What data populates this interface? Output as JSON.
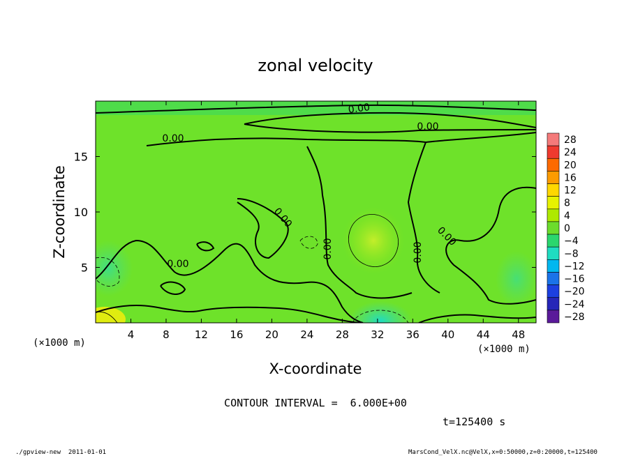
{
  "chart_data": {
    "type": "heatmap",
    "title": "zonal velocity",
    "xlabel": "X-coordinate",
    "ylabel": "Z-coordinate",
    "x_unit_left": "(×1000 m)",
    "x_unit_right": "(×1000 m)",
    "xlim": [
      0,
      50
    ],
    "ylim": [
      0,
      20
    ],
    "x_ticks": [
      4,
      8,
      12,
      16,
      20,
      24,
      28,
      32,
      36,
      40,
      44,
      48
    ],
    "y_ticks": [
      5,
      10,
      15
    ],
    "colorbar": {
      "levels": [
        28,
        24,
        20,
        16,
        12,
        8,
        4,
        0,
        -4,
        -8,
        -12,
        -16,
        -20,
        -24,
        -28
      ],
      "level_labels": [
        "28",
        "24",
        "20",
        "16",
        "12",
        "8",
        "4",
        "0",
        "−4",
        "−8",
        "−12",
        "−16",
        "−20",
        "−24",
        "−28"
      ],
      "colors": [
        "#f47a7a",
        "#ef3a2f",
        "#fd6a00",
        "#fc9b00",
        "#ffd700",
        "#e7f200",
        "#aee900",
        "#6cdc2c",
        "#2bd66e",
        "#1fdcc1",
        "#00b7ef",
        "#1a73e8",
        "#1c40e0",
        "#2626b8",
        "#5a1a9a"
      ]
    },
    "contour_labels": [
      "0.00",
      "0.00",
      "0.00",
      "0.00",
      "0.00",
      "0.00",
      "0.00",
      "0.00"
    ],
    "contour_interval_text": "CONTOUR INTERVAL =  6.000E+00",
    "time_text": "t=125400 s",
    "features": [
      {
        "kind": "positive",
        "x": 31.5,
        "z": 7.8,
        "value": 6
      },
      {
        "kind": "negative",
        "x": 32,
        "z": 1.0,
        "value": -8
      },
      {
        "kind": "positive",
        "x": 1,
        "z": 0.6,
        "value": 10
      },
      {
        "kind": "negative",
        "x": 2,
        "z": 4.5,
        "value": -4
      }
    ]
  },
  "footer": {
    "left": "./gpview-new  2011-01-01",
    "right": "MarsCond_VelX.nc@VelX,x=0:50000,z=0:20000,t=125400"
  }
}
